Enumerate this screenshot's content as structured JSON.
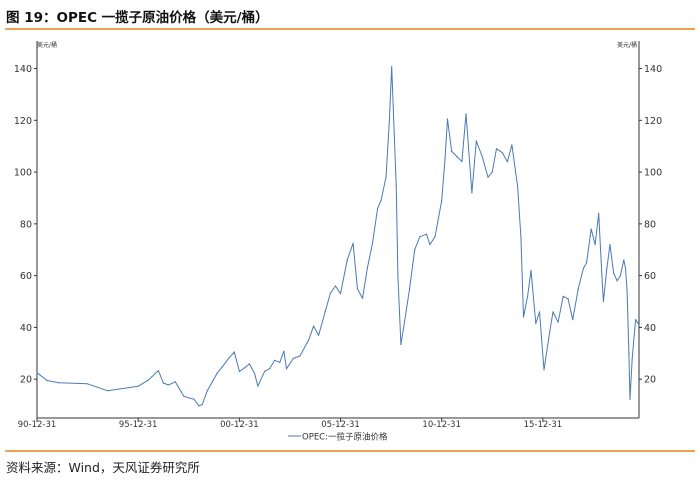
{
  "figure": {
    "title": "图 19：OPEC 一揽子原油价格（美元/桶）",
    "source": "资料来源：Wind，天风证券研究所"
  },
  "colors": {
    "line": "#4a79b6",
    "accent_rule": "#f0a050",
    "axis": "#333333"
  },
  "chart_data": {
    "type": "line",
    "title": "",
    "ylabel_left": "美元/桶",
    "ylabel_right": "美元/桶",
    "y_ticks": [
      20,
      40,
      60,
      80,
      100,
      120,
      140
    ],
    "ylim": [
      5,
      146
    ],
    "x_ticks": [
      "90-12-31",
      "95-12-31",
      "00-12-31",
      "05-12-31",
      "10-12-31",
      "15-12-31"
    ],
    "xlim": [
      "1990-12-31",
      "2020-09-30"
    ],
    "legend": "top-center-bottom",
    "series": [
      {
        "name": "OPEC:一揽子原油价格",
        "x": [
          "1990-12-31",
          "1991-06-30",
          "1992-01-31",
          "1993-06-30",
          "1994-06-30",
          "1995-12-31",
          "1996-06-30",
          "1996-12-31",
          "1997-03-31",
          "1997-06-30",
          "1997-10-31",
          "1998-03-31",
          "1998-06-30",
          "1998-09-30",
          "1998-12-31",
          "1999-02-28",
          "1999-05-31",
          "1999-08-31",
          "1999-11-30",
          "2000-02-29",
          "2000-06-30",
          "2000-09-30",
          "2000-12-31",
          "2001-03-31",
          "2001-06-30",
          "2001-09-30",
          "2001-11-30",
          "2002-03-31",
          "2002-06-30",
          "2002-09-30",
          "2002-12-31",
          "2003-03-15",
          "2003-04-30",
          "2003-08-31",
          "2003-12-31",
          "2004-05-31",
          "2004-08-31",
          "2004-11-30",
          "2005-03-31",
          "2005-06-30",
          "2005-09-30",
          "2005-12-31",
          "2006-04-30",
          "2006-08-15",
          "2006-10-31",
          "2007-01-31",
          "2007-04-30",
          "2007-07-31",
          "2007-10-31",
          "2007-12-31",
          "2008-03-31",
          "2008-05-31",
          "2008-07-11",
          "2008-08-31",
          "2008-09-30",
          "2008-10-31",
          "2008-12-24",
          "2009-02-28",
          "2009-05-31",
          "2009-08-31",
          "2009-11-30",
          "2010-03-31",
          "2010-05-31",
          "2010-08-31",
          "2010-12-31",
          "2011-02-28",
          "2011-04-15",
          "2011-06-30",
          "2011-09-30",
          "2011-12-31",
          "2012-03-14",
          "2012-06-28",
          "2012-09-15",
          "2012-12-31",
          "2013-04-15",
          "2013-06-30",
          "2013-09-15",
          "2013-12-31",
          "2014-03-31",
          "2014-06-20",
          "2014-09-30",
          "2014-11-30",
          "2015-01-15",
          "2015-03-31",
          "2015-05-31",
          "2015-08-25",
          "2015-10-31",
          "2016-01-20",
          "2016-04-30",
          "2016-06-30",
          "2016-09-30",
          "2016-12-31",
          "2017-03-31",
          "2017-06-21",
          "2017-09-30",
          "2017-12-31",
          "2018-02-28",
          "2018-05-22",
          "2018-07-31",
          "2018-10-03",
          "2018-11-30",
          "2018-12-27",
          "2019-02-28",
          "2019-04-25",
          "2019-06-30",
          "2019-08-31",
          "2019-10-31",
          "2019-12-31",
          "2020-01-31",
          "2020-02-29",
          "2020-03-31",
          "2020-04-21",
          "2020-05-31",
          "2020-07-31",
          "2020-09-30"
        ],
        "values": [
          22.5,
          19.5,
          18.6,
          18.2,
          15.5,
          17.3,
          19.6,
          23.3,
          18.5,
          17.8,
          19.0,
          13.5,
          12.8,
          12.3,
          9.7,
          10.2,
          15.5,
          19.0,
          22.5,
          24.8,
          28.3,
          30.5,
          23.0,
          24.3,
          25.9,
          22.3,
          17.3,
          23.0,
          24.1,
          27.3,
          26.5,
          30.8,
          24.0,
          28.0,
          29.0,
          35.0,
          40.5,
          37.0,
          46.2,
          53.2,
          56.0,
          53.0,
          66.0,
          72.5,
          55.0,
          51.2,
          63.0,
          72.5,
          86.0,
          89.0,
          98.0,
          120.0,
          140.7,
          112.0,
          95.0,
          60.0,
          33.4,
          42.0,
          55.0,
          70.0,
          75.0,
          76.0,
          72.0,
          75.0,
          89.0,
          105.0,
          120.5,
          108.0,
          106.0,
          104.0,
          122.5,
          92.0,
          112.0,
          106.0,
          98.0,
          100.0,
          109.0,
          107.5,
          104.0,
          110.5,
          94.5,
          75.0,
          44.0,
          52.0,
          62.0,
          41.5,
          46.0,
          23.6,
          38.0,
          46.0,
          42.0,
          52.0,
          51.0,
          43.0,
          55.0,
          62.8,
          65.0,
          78.0,
          72.0,
          84.0,
          60.0,
          50.0,
          63.0,
          72.0,
          61.0,
          58.0,
          60.0,
          66.0,
          63.0,
          54.0,
          30.0,
          12.2,
          28.0,
          43.0,
          41.0
        ]
      }
    ]
  }
}
